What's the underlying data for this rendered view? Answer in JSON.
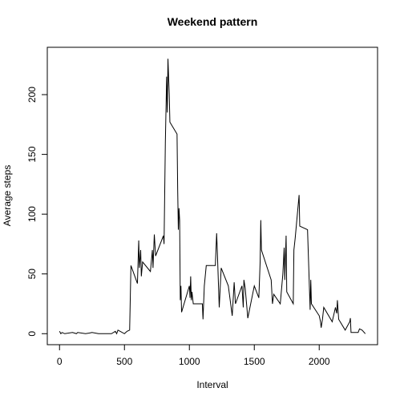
{
  "chart_data": {
    "type": "line",
    "title": "Weekend pattern",
    "x_label": "Interval",
    "y_label": "Average steps",
    "xlim": [
      -94.2,
      2449.2
    ],
    "ylim": [
      -9.2,
      239.6
    ],
    "xticks": [
      0,
      500,
      1000,
      1500,
      2000
    ],
    "yticks": [
      0,
      50,
      100,
      150,
      200
    ],
    "series": [
      {
        "name": "Average steps",
        "color": "#000000",
        "x": [
          0,
          10,
          20,
          40,
          100,
          130,
          140,
          200,
          230,
          250,
          300,
          400,
          430,
          440,
          450,
          500,
          520,
          540,
          550,
          600,
          610,
          615,
          625,
          630,
          640,
          700,
          715,
          720,
          730,
          740,
          800,
          805,
          815,
          825,
          830,
          835,
          845,
          850,
          905,
          910,
          915,
          920,
          925,
          930,
          935,
          940,
          1000,
          1005,
          1010,
          1015,
          1020,
          1030,
          1100,
          1105,
          1115,
          1130,
          1200,
          1210,
          1215,
          1230,
          1245,
          1300,
          1330,
          1345,
          1355,
          1405,
          1415,
          1420,
          1430,
          1450,
          1500,
          1535,
          1545,
          1550,
          1555,
          1630,
          1640,
          1650,
          1700,
          1720,
          1730,
          1735,
          1745,
          1750,
          1800,
          1805,
          1815,
          1845,
          1850,
          1910,
          1930,
          1935,
          1940,
          2000,
          2010,
          2015,
          2025,
          2035,
          2100,
          2125,
          2135,
          2140,
          2150,
          2200,
          2235,
          2240,
          2245,
          2300,
          2310,
          2330,
          2355
        ],
        "values": [
          2,
          0,
          1,
          0,
          1,
          0,
          1,
          0,
          0.5,
          1,
          0,
          0,
          2,
          0,
          3,
          0,
          2,
          3,
          57,
          42,
          78,
          55,
          70,
          48,
          60,
          52,
          70,
          55,
          83,
          65,
          82,
          75,
          160,
          215,
          185,
          230,
          200,
          177,
          167,
          120,
          87,
          105,
          95,
          28,
          40,
          18,
          40,
          30,
          48,
          28,
          35,
          25,
          25,
          12,
          40,
          57,
          57,
          84,
          70,
          22,
          55,
          40,
          15,
          43,
          25,
          40,
          22,
          45,
          38,
          13,
          40,
          30,
          60,
          95,
          70,
          45,
          25,
          33,
          25,
          50,
          72,
          45,
          82,
          35,
          25,
          70,
          80,
          116,
          90,
          87,
          20,
          45,
          25,
          15,
          10,
          5,
          12,
          22,
          10,
          22,
          17,
          28,
          12,
          3,
          10,
          13,
          1,
          1,
          4,
          3,
          0
        ]
      }
    ]
  }
}
